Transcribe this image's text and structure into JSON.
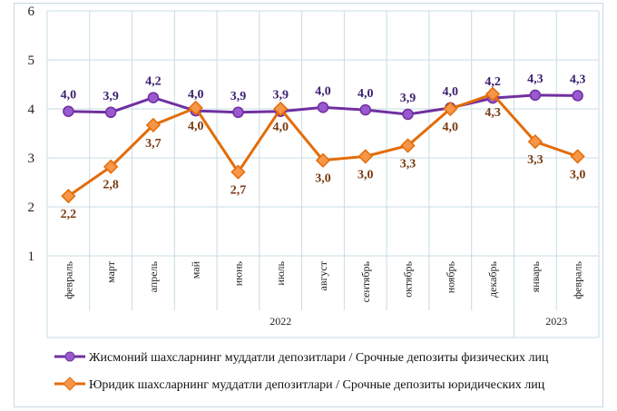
{
  "chart_data": {
    "type": "line",
    "categories": [
      "февраль",
      "март",
      "апрель",
      "май",
      "июнь",
      "июль",
      "август",
      "сентябрь",
      "октябрь",
      "ноябрь",
      "декабрь",
      "январь",
      "февраль"
    ],
    "year_groups": [
      {
        "label": "2022",
        "count": 11
      },
      {
        "label": "2023",
        "count": 2
      }
    ],
    "ylim": [
      1,
      6
    ],
    "yticks": [
      1,
      2,
      3,
      4,
      5,
      6
    ],
    "grid": true,
    "legend_position": "bottom",
    "series": [
      {
        "name": "Жисмоний шахсларнинг  муддатли  депозитлари  / Срочные депозиты физических лиц",
        "color": "#7030a0",
        "marker": "circle",
        "values": [
          3.95,
          3.93,
          4.23,
          3.96,
          3.93,
          3.95,
          4.03,
          3.98,
          3.89,
          4.02,
          4.22,
          4.28,
          4.27
        ],
        "labels": [
          "4,0",
          "3,9",
          "4,2",
          "4,0",
          "3,9",
          "3,9",
          "4,0",
          "4,0",
          "3,9",
          "4,0",
          "4,2",
          "4,3",
          "4,3"
        ]
      },
      {
        "name": "Юридик шахсларнинг  муддатли  депозитлари / Срочные депозиты юридических лиц",
        "color": "#e36c0a",
        "marker": "diamond",
        "values": [
          2.22,
          2.82,
          3.67,
          4.02,
          2.71,
          4.0,
          2.95,
          3.03,
          3.25,
          4.0,
          4.3,
          3.33,
          3.03
        ],
        "labels": [
          "2,2",
          "2,8",
          "3,7",
          "4,0",
          "2,7",
          "4,0",
          "3,0",
          "3,0",
          "3,3",
          "4,0",
          "4,3",
          "3,3",
          "3,0"
        ]
      }
    ]
  }
}
